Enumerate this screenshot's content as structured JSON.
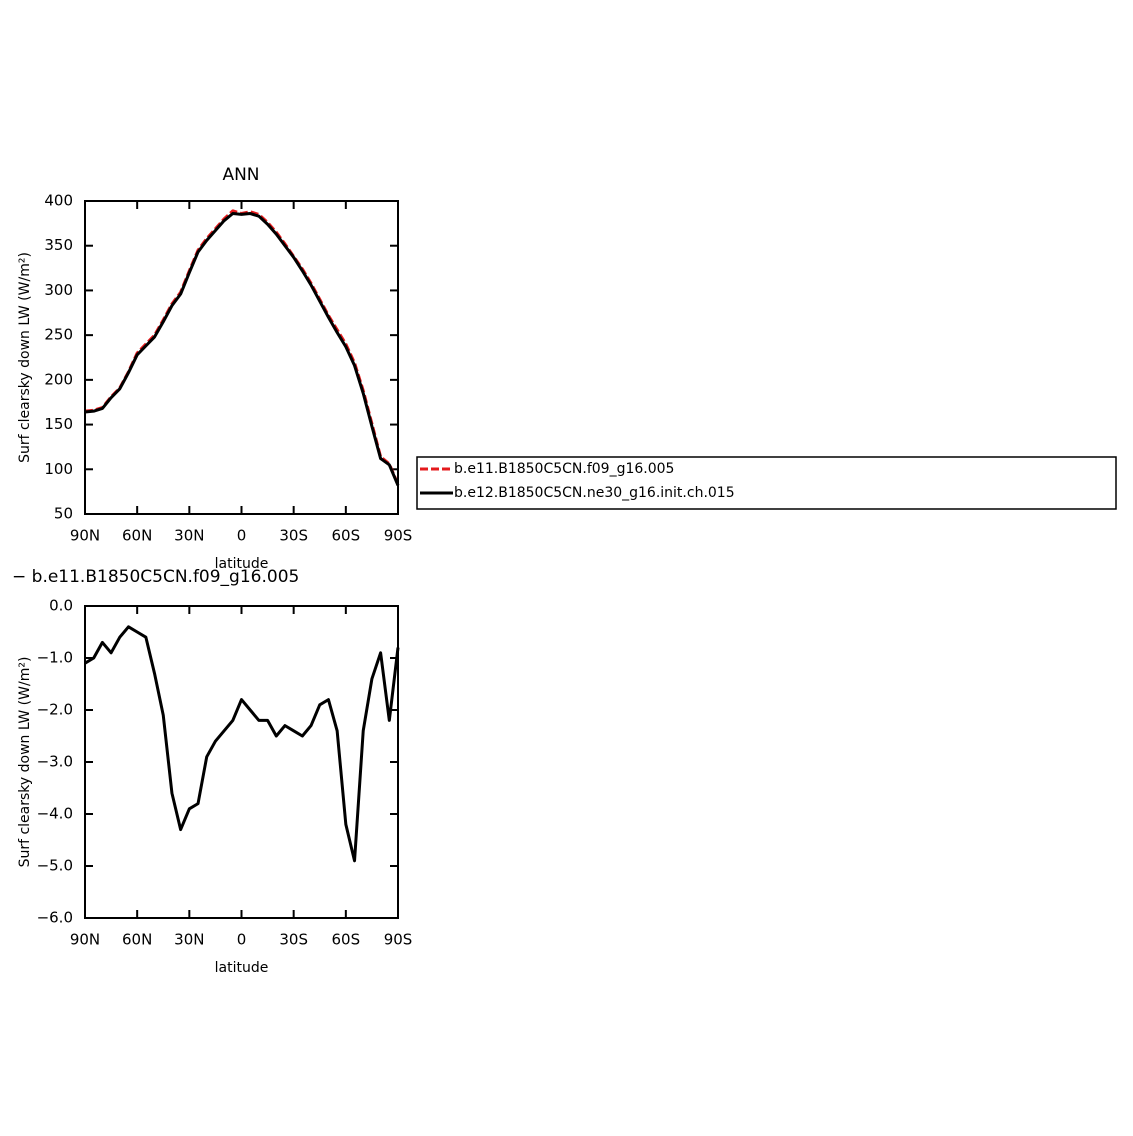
{
  "chart_data": [
    {
      "type": "line",
      "title": "ANN",
      "xlabel": "latitude",
      "ylabel": "Surf clearsky down LW (W/m²)",
      "x": [
        90,
        85,
        80,
        75,
        70,
        65,
        60,
        55,
        50,
        45,
        40,
        35,
        30,
        25,
        20,
        15,
        10,
        5,
        0,
        -5,
        -10,
        -15,
        -20,
        -25,
        -30,
        -35,
        -40,
        -45,
        -50,
        -55,
        -60,
        -65,
        -70,
        -75,
        -80,
        -85,
        -90
      ],
      "xlim": [
        90,
        -90
      ],
      "xticks": [
        {
          "value": 90,
          "label": "90N"
        },
        {
          "value": 60,
          "label": "60N"
        },
        {
          "value": 30,
          "label": "30N"
        },
        0,
        {
          "value": -30,
          "label": "30S"
        },
        {
          "value": -60,
          "label": "60S"
        },
        {
          "value": -90,
          "label": "90S"
        }
      ],
      "ylim": [
        50,
        400
      ],
      "yticks": [
        50,
        100,
        150,
        200,
        250,
        300,
        350,
        400
      ],
      "legend": "right",
      "series": [
        {
          "name": "b.e11.B1850C5CN.f09_g16.005",
          "color": "#e41a1c",
          "dashed": true,
          "values": [
            165,
            166,
            169,
            181,
            191,
            209,
            230,
            240,
            250,
            267,
            285,
            298,
            322,
            345,
            358,
            369,
            380,
            389,
            386,
            388,
            385,
            376,
            365,
            352,
            338,
            324,
            308,
            290,
            272,
            256,
            240,
            219,
            188,
            151,
            114,
            106,
            83
          ]
        },
        {
          "name": "b.e12.B1850C5CN.ne30_g16.init.ch.015",
          "color": "#000000",
          "dashed": false,
          "values": [
            164,
            165,
            168,
            180,
            190,
            208,
            228,
            238,
            248,
            265,
            283,
            296,
            320,
            343,
            356,
            367,
            378,
            386,
            385,
            386,
            383,
            374,
            363,
            350,
            337,
            322,
            306,
            288,
            270,
            253,
            237,
            216,
            185,
            148,
            112,
            105,
            82
          ]
        }
      ]
    },
    {
      "type": "line",
      "title": "− b.e11.B1850C5CN.f09_g16.005",
      "xlabel": "latitude",
      "ylabel": "Surf clearsky down LW (W/m²)",
      "x": [
        90,
        85,
        80,
        75,
        70,
        65,
        60,
        55,
        50,
        45,
        40,
        35,
        30,
        25,
        20,
        15,
        10,
        5,
        0,
        -5,
        -10,
        -15,
        -20,
        -25,
        -30,
        -35,
        -40,
        -45,
        -50,
        -55,
        -60,
        -65,
        -70,
        -75,
        -80,
        -85,
        -90
      ],
      "xlim": [
        90,
        -90
      ],
      "xticks": [
        {
          "value": 90,
          "label": "90N"
        },
        {
          "value": 60,
          "label": "60N"
        },
        {
          "value": 30,
          "label": "30N"
        },
        0,
        {
          "value": -30,
          "label": "30S"
        },
        {
          "value": -60,
          "label": "60S"
        },
        {
          "value": -90,
          "label": "90S"
        }
      ],
      "ylim": [
        -6,
        0
      ],
      "yticks": [
        {
          "value": -6,
          "label": "−6.0"
        },
        {
          "value": -5,
          "label": "−5.0"
        },
        {
          "value": -4,
          "label": "−4.0"
        },
        {
          "value": -3,
          "label": "−3.0"
        },
        {
          "value": -2,
          "label": "−2.0"
        },
        {
          "value": -1,
          "label": "−1.0"
        },
        {
          "value": 0,
          "label": "0.0"
        }
      ],
      "color": "#000000",
      "values": [
        -1.1,
        -1.0,
        -0.7,
        -0.9,
        -0.6,
        -0.4,
        -0.5,
        -0.6,
        -1.3,
        -2.1,
        -3.6,
        -4.3,
        -3.9,
        -3.8,
        -2.9,
        -2.6,
        -2.4,
        -2.2,
        -1.8,
        -2.0,
        -2.2,
        -2.2,
        -2.5,
        -2.3,
        -2.4,
        -2.5,
        -2.3,
        -1.9,
        -1.8,
        -2.4,
        -4.2,
        -4.9,
        -2.4,
        -1.4,
        -0.9,
        -2.2,
        -0.8
      ]
    }
  ]
}
